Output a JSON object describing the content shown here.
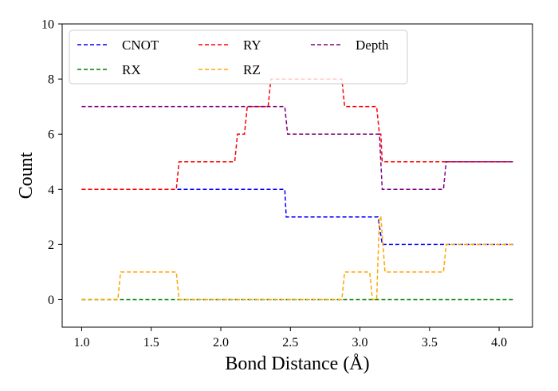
{
  "chart_data": {
    "type": "line",
    "title": "",
    "xlabel": "Bond Distance (Å)",
    "ylabel": "Count",
    "xlim": [
      0.86,
      4.24
    ],
    "ylim": [
      -1,
      10
    ],
    "xticks": [
      1.0,
      1.5,
      2.0,
      2.5,
      3.0,
      3.5,
      4.0
    ],
    "xtick_labels": [
      "1.0",
      "1.5",
      "2.0",
      "2.5",
      "3.0",
      "3.5",
      "4.0"
    ],
    "yticks": [
      0,
      2,
      4,
      6,
      8,
      10
    ],
    "ytick_labels": [
      "0",
      "2",
      "4",
      "6",
      "8",
      "10"
    ],
    "grid": false,
    "legend_position": "top-left",
    "series": [
      {
        "name": "CNOT",
        "color": "#0000ff",
        "x": [
          1.0,
          2.46,
          2.47,
          3.13,
          3.16,
          4.1
        ],
        "y": [
          4,
          4,
          3,
          3,
          2,
          2
        ]
      },
      {
        "name": "RX",
        "color": "#008000",
        "x": [
          1.0,
          4.1
        ],
        "y": [
          0,
          0
        ]
      },
      {
        "name": "RY",
        "color": "#ff0000",
        "x": [
          1.0,
          1.68,
          1.7,
          2.1,
          2.12,
          2.17,
          2.19,
          2.34,
          2.36,
          2.46,
          2.47,
          2.87,
          2.89,
          3.12,
          3.14,
          3.15,
          3.16,
          4.1
        ],
        "y": [
          4,
          4,
          5,
          5,
          6,
          6,
          7,
          7,
          8,
          8,
          8,
          8,
          7,
          7,
          6,
          6,
          5,
          5
        ]
      },
      {
        "name": "RZ",
        "color": "#ffa500",
        "x": [
          1.0,
          1.26,
          1.28,
          1.68,
          1.7,
          2.87,
          2.89,
          3.07,
          3.09,
          3.12,
          3.14,
          3.15,
          3.18,
          3.6,
          3.62,
          4.1
        ],
        "y": [
          0,
          0,
          1,
          1,
          0,
          0,
          1,
          1,
          0,
          0,
          3,
          3,
          1,
          1,
          2,
          2
        ]
      },
      {
        "name": "Depth",
        "color": "#800080",
        "x": [
          1.0,
          2.46,
          2.48,
          3.14,
          3.16,
          3.6,
          3.62,
          4.1
        ],
        "y": [
          7,
          7,
          6,
          6,
          4,
          4,
          5,
          5
        ]
      }
    ],
    "legend_order": [
      "CNOT",
      "RY",
      "Depth",
      "RX",
      "RZ"
    ]
  }
}
